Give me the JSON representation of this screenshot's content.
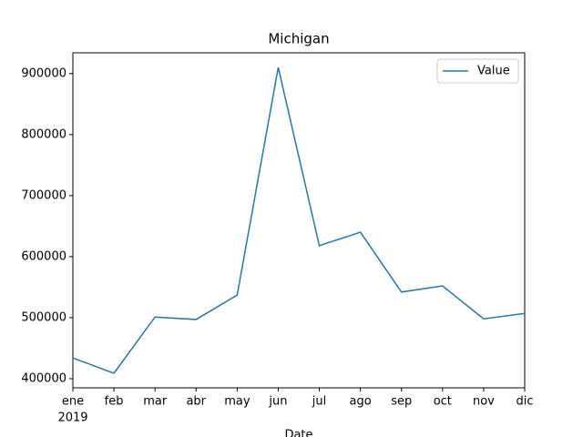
{
  "chart_data": {
    "type": "line",
    "title": "Michigan",
    "x_label": "Date",
    "year_label": "2019",
    "categories": [
      "ene",
      "feb",
      "mar",
      "abr",
      "may",
      "jun",
      "jul",
      "ago",
      "sep",
      "oct",
      "nov",
      "dic"
    ],
    "series": [
      {
        "name": "Value",
        "color": "#1f77b4",
        "values": [
          434000,
          409000,
          501000,
          497000,
          537000,
          910000,
          618000,
          640000,
          542000,
          552000,
          498000,
          507000
        ]
      }
    ],
    "ylim": [
      385000,
      934000
    ],
    "yticks": [
      400000,
      500000,
      600000,
      700000,
      800000,
      900000
    ],
    "grid": false,
    "legend": "upper right"
  }
}
